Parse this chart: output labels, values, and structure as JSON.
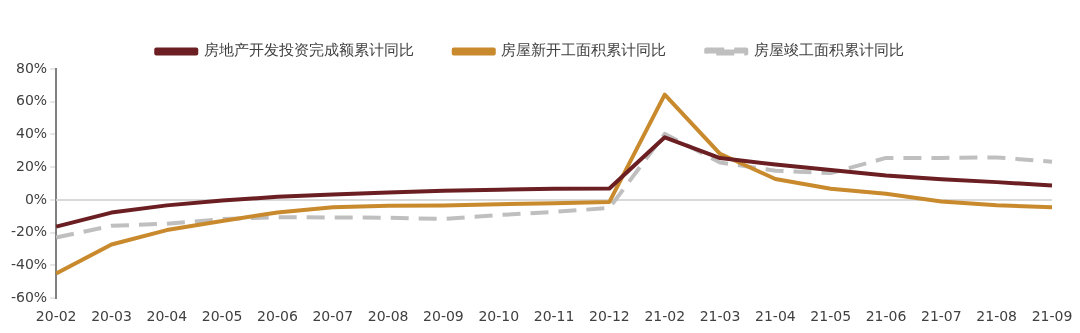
{
  "chart_data": {
    "type": "line",
    "categories": [
      "20-02",
      "20-03",
      "20-04",
      "20-05",
      "20-06",
      "20-07",
      "20-08",
      "20-09",
      "20-10",
      "20-11",
      "20-12",
      "21-02",
      "21-03",
      "21-04",
      "21-05",
      "21-06",
      "21-07",
      "21-08",
      "21-09"
    ],
    "series": [
      {
        "name": "房地产开发投资完成额累计同比",
        "color": "#6b1f22",
        "values": [
          -16.3,
          -7.7,
          -3.3,
          -0.3,
          1.9,
          3.4,
          4.6,
          5.6,
          6.3,
          6.8,
          7.0,
          38.3,
          25.6,
          21.6,
          18.3,
          15.0,
          12.7,
          10.9,
          8.9
        ]
      },
      {
        "name": "房屋新开工面积累计同比",
        "color": "#c98a2e",
        "values": [
          -44.9,
          -27.2,
          -18.4,
          -12.8,
          -7.6,
          -4.5,
          -3.6,
          -3.4,
          -2.6,
          -2.0,
          -1.2,
          64.3,
          28.2,
          12.8,
          6.9,
          3.8,
          -0.9,
          -3.2,
          -4.5
        ]
      },
      {
        "name": "房屋竣工面积累计同比",
        "color": "#bfbfbf",
        "line_style": "dashed",
        "values": [
          -22.9,
          -15.8,
          -14.5,
          -11.7,
          -10.5,
          -10.7,
          -10.8,
          -11.6,
          -9.2,
          -7.3,
          -4.9,
          40.4,
          22.9,
          17.9,
          16.4,
          25.7,
          25.7,
          26.0,
          23.4
        ]
      }
    ],
    "ylim": [
      -60,
      80
    ],
    "yticks": [
      {
        "value": -60,
        "label": "-60%"
      },
      {
        "value": -40,
        "label": "-40%"
      },
      {
        "value": -20,
        "label": "-20%"
      },
      {
        "value": 0,
        "label": "0%"
      },
      {
        "value": 20,
        "label": "20%"
      },
      {
        "value": 40,
        "label": "40%"
      },
      {
        "value": 60,
        "label": "60%"
      },
      {
        "value": 80,
        "label": "80%"
      }
    ],
    "ref_lines": [
      {
        "axis": "y",
        "value": 0,
        "color": "#d9d9d9"
      }
    ],
    "legend": "top",
    "marker": "none",
    "line_style": "solid",
    "grid": false
  }
}
